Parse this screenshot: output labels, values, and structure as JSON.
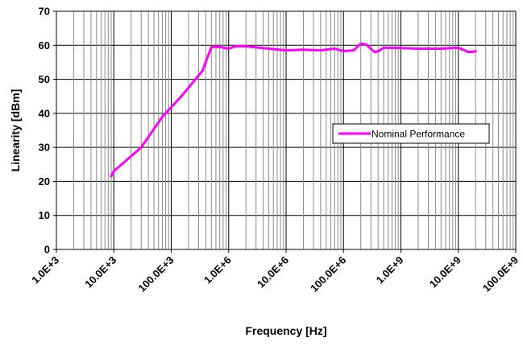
{
  "chart_data": {
    "type": "line",
    "title": "",
    "xlabel": "Frequency [Hz]",
    "ylabel": "Linearity [dBm]",
    "x_scale": "log",
    "xlim": [
      1000,
      100000000000
    ],
    "ylim": [
      0,
      70
    ],
    "y_ticks": [
      0,
      10,
      20,
      30,
      40,
      50,
      60,
      70
    ],
    "x_tick_labels": [
      "1.0E+3",
      "10.0E+3",
      "100.0E+3",
      "1.0E+6",
      "10.0E+6",
      "100.0E+6",
      "1.0E+9",
      "10.0E+9",
      "100.0E+9"
    ],
    "grid": true,
    "legend_position": "right",
    "series": [
      {
        "name": "Nominal Performance",
        "color": "#ff00ff",
        "x": [
          9000,
          10000,
          30000,
          70000,
          150000,
          350000,
          500000,
          700000,
          1000000,
          1300000,
          2000000,
          5000000,
          10000000,
          20000000,
          40000000,
          70000000,
          100000000,
          150000000,
          200000000,
          250000000,
          300000000,
          350000000,
          400000000,
          500000000,
          1000000000,
          2000000000,
          5000000000,
          10000000000,
          15000000000,
          20000000000
        ],
        "y": [
          21.5,
          23,
          30,
          39,
          45,
          52.5,
          59.5,
          59.5,
          59,
          59.7,
          59.7,
          59,
          58.5,
          58.7,
          58.5,
          59,
          58.3,
          58.5,
          60.5,
          60.2,
          59,
          58,
          58.2,
          59.3,
          59.2,
          59,
          59,
          59.3,
          58,
          58.2
        ]
      }
    ]
  }
}
